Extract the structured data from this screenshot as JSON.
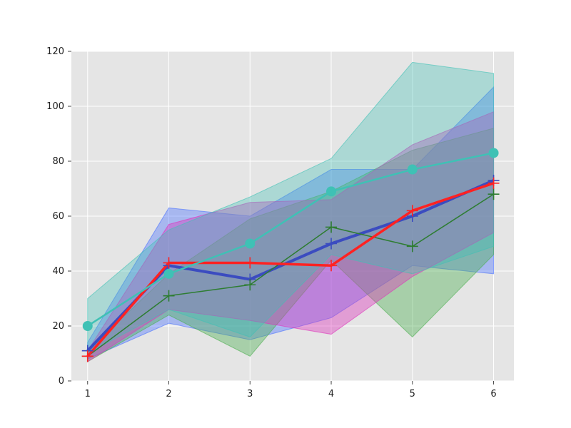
{
  "chart_data": {
    "type": "line",
    "title": "",
    "xlabel": "",
    "ylabel": "",
    "xlim": [
      0.8,
      6.25
    ],
    "ylim": [
      0,
      120
    ],
    "x": [
      1,
      2,
      3,
      4,
      5,
      6
    ],
    "x_ticks": [
      "1",
      "2",
      "3",
      "4",
      "5",
      "6"
    ],
    "y_ticks": [
      "0",
      "20",
      "40",
      "60",
      "80",
      "100",
      "120"
    ],
    "grid": true,
    "background": "#e5e5e5",
    "legend": "none",
    "series": [
      {
        "color": "#3b4cc0",
        "marker": "plus",
        "line_width": 4,
        "values": [
          11,
          42,
          37,
          50,
          60,
          73
        ],
        "band_lower": [
          8,
          21,
          15,
          23,
          42,
          39
        ],
        "band_upper": [
          14,
          63,
          60,
          77,
          77,
          107
        ],
        "band_color": "#4a72ff",
        "band_opacity": 0.4
      },
      {
        "color": "#2e7d32",
        "marker": "plus",
        "line_width": 1.5,
        "values": [
          9,
          31,
          35,
          56,
          49,
          68
        ],
        "band_lower": [
          7,
          24,
          9,
          44,
          16,
          46
        ],
        "band_upper": [
          11,
          39,
          59,
          69,
          84,
          92
        ],
        "band_color": "#4caf50",
        "band_opacity": 0.4
      },
      {
        "color": "#ff2222",
        "marker": "plus",
        "line_width": 3.5,
        "values": [
          9,
          43,
          43,
          42,
          62,
          72
        ],
        "band_lower": [
          7,
          26,
          22,
          17,
          38,
          54
        ],
        "band_upper": [
          11,
          57,
          65,
          66,
          86,
          98
        ],
        "band_color": "#dd33bb",
        "band_opacity": 0.4
      },
      {
        "color": "#3fc1b5",
        "marker": "circle",
        "line_width": 2.5,
        "values": [
          20,
          39,
          50,
          69,
          77,
          83
        ],
        "band_lower": [
          10,
          26,
          16,
          46,
          39,
          49
        ],
        "band_upper": [
          30,
          55,
          67,
          81,
          116,
          112
        ],
        "band_color": "#3fc1b5",
        "band_opacity": 0.35
      }
    ]
  }
}
